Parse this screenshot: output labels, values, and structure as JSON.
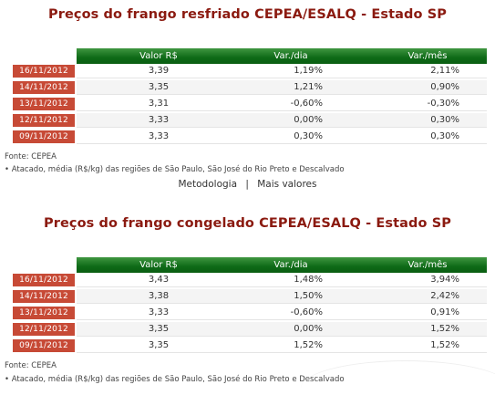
{
  "sections": [
    {
      "title": "Preços do frango resfriado CEPEA/ESALQ - Estado SP",
      "headers": {
        "valor": "Valor R$",
        "var_dia": "Var./dia",
        "var_mes": "Var./mês"
      },
      "rows": [
        {
          "date": "16/11/2012",
          "valor": "3,39",
          "var_dia": "1,19%",
          "var_mes": "2,11%"
        },
        {
          "date": "14/11/2012",
          "valor": "3,35",
          "var_dia": "1,21%",
          "var_mes": "0,90%"
        },
        {
          "date": "13/11/2012",
          "valor": "3,31",
          "var_dia": "-0,60%",
          "var_mes": "-0,30%"
        },
        {
          "date": "12/11/2012",
          "valor": "3,33",
          "var_dia": "0,00%",
          "var_mes": "0,30%"
        },
        {
          "date": "09/11/2012",
          "valor": "3,33",
          "var_dia": "0,30%",
          "var_mes": "0,30%"
        }
      ],
      "source": "Fonte: CEPEA",
      "note": "• Atacado, média (R$/kg) das regiões de São Paulo, São José do Rio Preto e Descalvado",
      "links": {
        "metodologia": "Metodologia",
        "separator": "|",
        "mais": "Mais valores"
      }
    },
    {
      "title": "Preços do frango congelado CEPEA/ESALQ - Estado SP",
      "headers": {
        "valor": "Valor R$",
        "var_dia": "Var./dia",
        "var_mes": "Var./mês"
      },
      "rows": [
        {
          "date": "16/11/2012",
          "valor": "3,43",
          "var_dia": "1,48%",
          "var_mes": "3,94%"
        },
        {
          "date": "14/11/2012",
          "valor": "3,38",
          "var_dia": "1,50%",
          "var_mes": "2,42%"
        },
        {
          "date": "13/11/2012",
          "valor": "3,33",
          "var_dia": "-0,60%",
          "var_mes": "0,91%"
        },
        {
          "date": "12/11/2012",
          "valor": "3,35",
          "var_dia": "0,00%",
          "var_mes": "1,52%"
        },
        {
          "date": "09/11/2012",
          "valor": "3,35",
          "var_dia": "1,52%",
          "var_mes": "1,52%"
        }
      ],
      "source": "Fonte: CEPEA",
      "note": "• Atacado, média (R$/kg) das regiões de São Paulo, São José do Rio Preto e Descalvado"
    }
  ]
}
